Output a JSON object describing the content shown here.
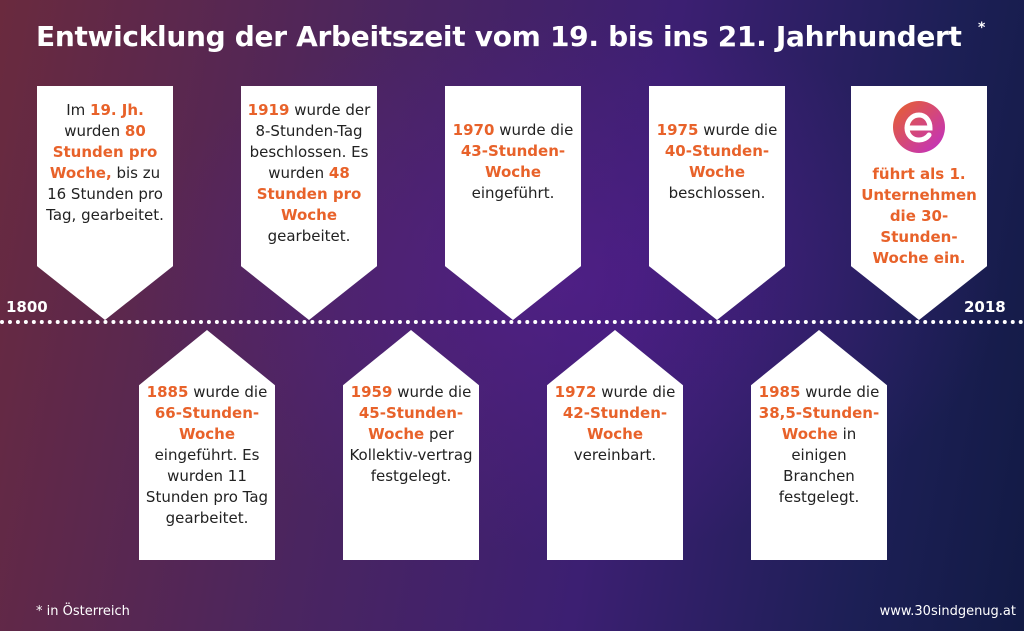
{
  "title": "Entwicklung der Arbeitszeit vom 19. bis ins 21. Jahrhundert",
  "title_mark": "*",
  "timeline": {
    "start": "1800",
    "end": "2018"
  },
  "colors": {
    "highlight": "#e8622a",
    "card": "#ffffff",
    "logo_gradient": [
      "#e8622a",
      "#c02ec8"
    ]
  },
  "logo_icon": "e-logo-icon",
  "cards": [
    {
      "id": "19jh",
      "segments": [
        {
          "t": "Im ",
          "h": false
        },
        {
          "t": "19. Jh.",
          "h": true
        },
        {
          "t": " wurden ",
          "h": false
        },
        {
          "t": "80 Stunden pro Woche,",
          "h": true
        },
        {
          "t": " bis zu 16 Stunden pro Tag, gearbeitet.",
          "h": false
        }
      ]
    },
    {
      "id": "1885",
      "segments": [
        {
          "t": "1885",
          "h": true
        },
        {
          "t": " wurde die ",
          "h": false
        },
        {
          "t": "66-Stunden-Woche",
          "h": true
        },
        {
          "t": " eingeführt. Es wurden 11 Stunden pro Tag gearbeitet.",
          "h": false
        }
      ]
    },
    {
      "id": "1919",
      "segments": [
        {
          "t": "1919",
          "h": true
        },
        {
          "t": " wurde der 8-Stunden-Tag beschlossen. Es wurden ",
          "h": false
        },
        {
          "t": "48 Stunden pro Woche",
          "h": true
        },
        {
          "t": " gearbeitet.",
          "h": false
        }
      ]
    },
    {
      "id": "1959",
      "segments": [
        {
          "t": "1959",
          "h": true
        },
        {
          "t": " wurde die ",
          "h": false
        },
        {
          "t": "45-Stunden-Woche",
          "h": true
        },
        {
          "t": " per Kollektiv-vertrag festgelegt.",
          "h": false
        }
      ]
    },
    {
      "id": "1970",
      "segments": [
        {
          "t": "1970",
          "h": true
        },
        {
          "t": " wurde die ",
          "h": false
        },
        {
          "t": "43-Stunden-Woche",
          "h": true
        },
        {
          "t": " eingeführt.",
          "h": false
        }
      ]
    },
    {
      "id": "1972",
      "segments": [
        {
          "t": "1972",
          "h": true
        },
        {
          "t": " wurde die ",
          "h": false
        },
        {
          "t": "42-Stunden-Woche",
          "h": true
        },
        {
          "t": " vereinbart.",
          "h": false
        }
      ]
    },
    {
      "id": "1975",
      "segments": [
        {
          "t": "1975",
          "h": true
        },
        {
          "t": " wurde die ",
          "h": false
        },
        {
          "t": "40-Stunden-Woche",
          "h": true
        },
        {
          "t": " beschlossen.",
          "h": false
        }
      ]
    },
    {
      "id": "1985",
      "segments": [
        {
          "t": "1985",
          "h": true
        },
        {
          "t": " wurde die ",
          "h": false
        },
        {
          "t": "38,5-Stunden-Woche",
          "h": true
        },
        {
          "t": " in einigen Branchen festgelegt.",
          "h": false
        }
      ]
    },
    {
      "id": "2018",
      "segments": [
        {
          "t": "führt als 1. Unternehmen die 30-Stunden-Woche ein.",
          "h": true
        }
      ]
    }
  ],
  "footnote": "* in Österreich",
  "website": "www.30sindgenug.at"
}
